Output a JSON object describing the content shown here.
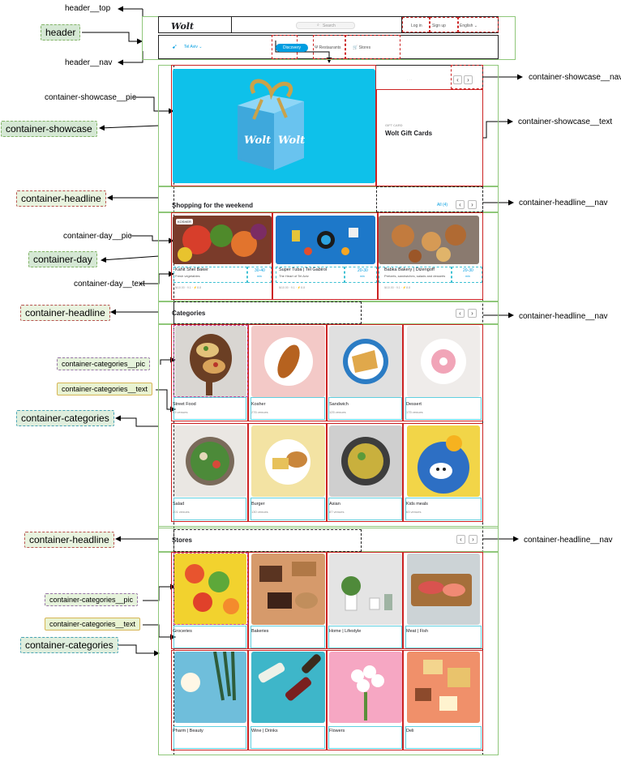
{
  "annotations": {
    "header_top": "header__top",
    "header": "header",
    "header_nav": "header__nav",
    "showcase_pic": "container-showcase__pic",
    "showcase": "container-showcase",
    "showcase_nav": "container-showcase__nav",
    "showcase_text": "container-showcase__text",
    "headline": "container-headline",
    "headline_nav": "container-headline__nav",
    "day_pic": "container-day__pic",
    "day": "container-day",
    "day_text": "container-day__text",
    "categories_pic": "container-categories__pic",
    "categories_text": "container-categories__text",
    "categories": "container-categories"
  },
  "header": {
    "logo": "Wolt",
    "search_placeholder": "Search",
    "login": "Log in",
    "signup": "Sign up",
    "language": "English",
    "location": "Tel Aviv",
    "nav": [
      "Discovery",
      "Restaurants",
      "Stores"
    ]
  },
  "showcase": {
    "kicker": "GIFT CARD",
    "title": "Wolt Gift Cards",
    "box_label": "Wolt"
  },
  "headlines": {
    "weekend": "Shopping for the weekend",
    "see_all": "All (4)",
    "categories": "Categories",
    "stores": "Stores"
  },
  "day_cards": [
    {
      "badge": "KOSHER",
      "title": "Kahit Shel Baker",
      "subtitle": "Fresh vegetables",
      "time": "30-40",
      "unit": "min",
      "meta": "₪10.00 · 9.1 · ⚡8.8"
    },
    {
      "badge": "",
      "title": "Super Tuba | Tel Gabirol",
      "subtitle": "The Heart of Tel Aviv",
      "time": "20-30",
      "unit": "min",
      "meta": "₪10.00 · 9.1 · ⚡8.8"
    },
    {
      "badge": "",
      "title": "Babka Bakery | Dizengoff",
      "subtitle": "Pretzels, sandwiches, salads and desserts",
      "time": "20-30",
      "unit": "min",
      "meta": "₪10.00 · 9.1 · ⚡8.8"
    }
  ],
  "categories": [
    {
      "title": "Street Food",
      "sub": "93 venues"
    },
    {
      "title": "Kosher",
      "sub": "276 venues"
    },
    {
      "title": "Sandwich",
      "sub": "125 venues"
    },
    {
      "title": "Dessert",
      "sub": "175 venues"
    },
    {
      "title": "Salad",
      "sub": "201 venues"
    },
    {
      "title": "Burger",
      "sub": "130 venues"
    },
    {
      "title": "Asian",
      "sub": "87 venues"
    },
    {
      "title": "Kids meals",
      "sub": "63 venues"
    }
  ],
  "stores": [
    {
      "title": "Groceries"
    },
    {
      "title": "Bakeries"
    },
    {
      "title": "Home | Lifestyle"
    },
    {
      "title": "Meat | Fish"
    },
    {
      "title": "Pharm | Beauty"
    },
    {
      "title": "Wine | Drinks"
    },
    {
      "title": "Flowers"
    },
    {
      "title": "Deli"
    }
  ],
  "colors": {
    "brand_blue": "#009de0",
    "wireframe_green": "#8fc77a",
    "wireframe_red": "#cc2222",
    "wireframe_cyan": "#3ec1d3"
  }
}
